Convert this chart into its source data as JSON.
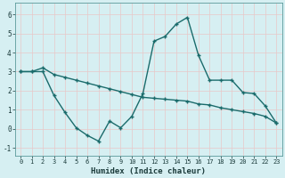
{
  "xlabel": "Humidex (Indice chaleur)",
  "bg_color": "#d6eff2",
  "grid_color": "#b8dde0",
  "line_color": "#1a6b6b",
  "xlim": [
    -0.5,
    23.5
  ],
  "ylim": [
    -1.4,
    6.6
  ],
  "yticks": [
    -1,
    0,
    1,
    2,
    3,
    4,
    5,
    6
  ],
  "xticks": [
    0,
    1,
    2,
    3,
    4,
    5,
    6,
    7,
    8,
    9,
    10,
    11,
    12,
    13,
    14,
    15,
    16,
    17,
    18,
    19,
    20,
    21,
    22,
    23
  ],
  "line1_x": [
    0,
    1,
    2,
    3,
    4,
    5,
    6,
    7,
    8,
    9,
    10,
    11,
    12,
    13,
    14,
    15,
    16,
    17,
    18,
    19,
    20,
    21,
    22,
    23
  ],
  "line1_y": [
    3.0,
    3.0,
    3.2,
    2.85,
    2.7,
    2.55,
    2.4,
    2.25,
    2.1,
    1.95,
    1.8,
    1.65,
    1.6,
    1.55,
    1.5,
    1.45,
    1.3,
    1.25,
    1.1,
    1.0,
    0.9,
    0.8,
    0.65,
    0.3
  ],
  "line2_x": [
    0,
    1,
    2,
    3,
    4,
    5,
    6,
    7,
    8,
    9,
    10,
    11,
    12,
    13,
    14,
    15,
    16,
    17,
    18,
    19,
    20,
    21,
    22,
    23
  ],
  "line2_y": [
    3.0,
    3.0,
    3.0,
    1.75,
    0.85,
    0.05,
    -0.35,
    -0.65,
    0.4,
    0.05,
    0.65,
    1.85,
    4.6,
    4.85,
    5.5,
    5.85,
    3.85,
    2.55,
    2.55,
    2.55,
    1.9,
    1.85,
    1.2,
    0.3
  ]
}
